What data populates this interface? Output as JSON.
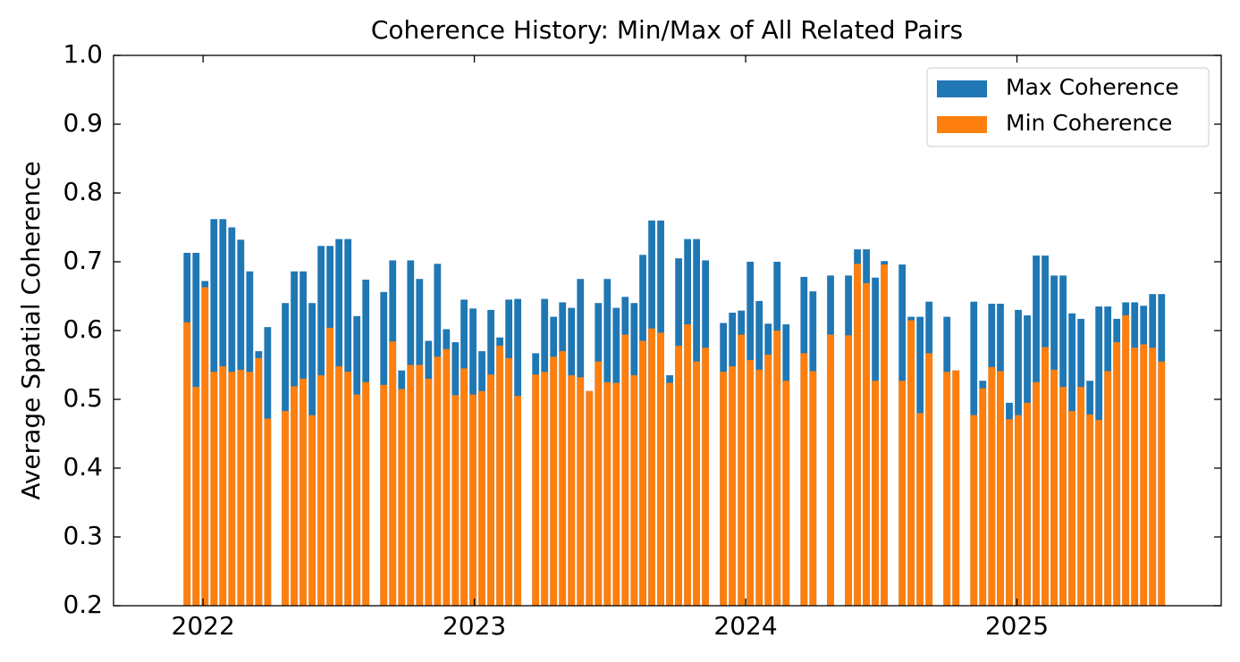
{
  "chart_data": {
    "type": "bar",
    "title": "Coherence History: Min/Max of All Related Pairs",
    "y_label": "Average Spatial Coherence",
    "x": [
      2021.941,
      2021.974,
      2022.007,
      2022.04,
      2022.073,
      2022.106,
      2022.139,
      2022.172,
      2022.205,
      2022.238,
      2022.303,
      2022.336,
      2022.369,
      2022.402,
      2022.435,
      2022.468,
      2022.501,
      2022.534,
      2022.567,
      2022.6,
      2022.666,
      2022.699,
      2022.732,
      2022.765,
      2022.798,
      2022.831,
      2022.864,
      2022.897,
      2022.93,
      2022.962,
      2022.995,
      2023.028,
      2023.061,
      2023.094,
      2023.127,
      2023.16,
      2023.226,
      2023.259,
      2023.292,
      2023.325,
      2023.358,
      2023.391,
      2023.424,
      2023.457,
      2023.49,
      2023.523,
      2023.556,
      2023.589,
      2023.621,
      2023.654,
      2023.687,
      2023.72,
      2023.753,
      2023.786,
      2023.819,
      2023.852,
      2023.918,
      2023.951,
      2023.984,
      2024.017,
      2024.05,
      2024.083,
      2024.116,
      2024.149,
      2024.215,
      2024.248,
      2024.313,
      2024.379,
      2024.412,
      2024.445,
      2024.478,
      2024.511,
      2024.577,
      2024.61,
      2024.643,
      2024.676,
      2024.742,
      2024.775,
      2024.841,
      2024.874,
      2024.907,
      2024.939,
      2024.972,
      2025.005,
      2025.038,
      2025.071,
      2025.104,
      2025.137,
      2025.17,
      2025.203,
      2025.236,
      2025.269,
      2025.302,
      2025.335,
      2025.368,
      2025.401,
      2025.434,
      2025.467,
      2025.5,
      2025.533
    ],
    "series": [
      {
        "name": "Max Coherence",
        "color": "#1f77b4",
        "values": [
          0.713,
          0.713,
          0.672,
          0.762,
          0.762,
          0.75,
          0.732,
          0.686,
          0.57,
          0.605,
          0.64,
          0.686,
          0.686,
          0.64,
          0.723,
          0.723,
          0.733,
          0.733,
          0.621,
          0.674,
          0.656,
          0.702,
          0.542,
          0.702,
          0.675,
          0.585,
          0.697,
          0.602,
          0.583,
          0.645,
          0.632,
          0.57,
          0.63,
          0.59,
          0.645,
          0.646,
          0.567,
          0.646,
          0.62,
          0.641,
          0.633,
          0.675,
          0.512,
          0.64,
          0.675,
          0.633,
          0.649,
          0.64,
          0.71,
          0.76,
          0.76,
          0.535,
          0.705,
          0.733,
          0.733,
          0.702,
          0.611,
          0.626,
          0.629,
          0.7,
          0.643,
          0.61,
          0.7,
          0.609,
          0.678,
          0.657,
          0.68,
          0.68,
          0.718,
          0.718,
          0.677,
          0.701,
          0.696,
          0.62,
          0.62,
          0.642,
          0.62,
          0.542,
          0.642,
          0.527,
          0.639,
          0.639,
          0.495,
          0.63,
          0.622,
          0.709,
          0.709,
          0.68,
          0.68,
          0.625,
          0.617,
          0.527,
          0.635,
          0.635,
          0.617,
          0.641,
          0.641,
          0.636,
          0.653,
          0.653
        ]
      },
      {
        "name": "Min Coherence",
        "color": "#ff7f0e",
        "values": [
          0.612,
          0.518,
          0.663,
          0.54,
          0.548,
          0.54,
          0.543,
          0.54,
          0.56,
          0.472,
          0.483,
          0.519,
          0.53,
          0.477,
          0.535,
          0.604,
          0.548,
          0.54,
          0.507,
          0.525,
          0.521,
          0.584,
          0.515,
          0.55,
          0.55,
          0.53,
          0.562,
          0.573,
          0.506,
          0.545,
          0.507,
          0.512,
          0.536,
          0.578,
          0.56,
          0.505,
          0.536,
          0.54,
          0.562,
          0.57,
          0.535,
          0.532,
          0.512,
          0.555,
          0.525,
          0.524,
          0.594,
          0.535,
          0.585,
          0.603,
          0.597,
          0.524,
          0.578,
          0.609,
          0.555,
          0.575,
          0.54,
          0.548,
          0.594,
          0.557,
          0.543,
          0.565,
          0.6,
          0.527,
          0.567,
          0.541,
          0.594,
          0.593,
          0.697,
          0.669,
          0.527,
          0.696,
          0.527,
          0.615,
          0.48,
          0.567,
          0.54,
          0.542,
          0.477,
          0.516,
          0.547,
          0.541,
          0.471,
          0.477,
          0.495,
          0.525,
          0.576,
          0.543,
          0.518,
          0.483,
          0.518,
          0.478,
          0.47,
          0.541,
          0.583,
          0.622,
          0.575,
          0.58,
          0.575,
          0.555
        ]
      }
    ],
    "xlim": [
      2021.67,
      2025.753
    ],
    "xticks": [
      2022,
      2023,
      2024,
      2025
    ],
    "ylim": [
      0.2,
      1.0
    ],
    "yticks": [
      0.2,
      0.3,
      0.4,
      0.5,
      0.6,
      0.7,
      0.8,
      0.9,
      {
        "value": 1.0,
        "label": "1.0"
      }
    ],
    "grid": false,
    "legend": "upper right"
  }
}
